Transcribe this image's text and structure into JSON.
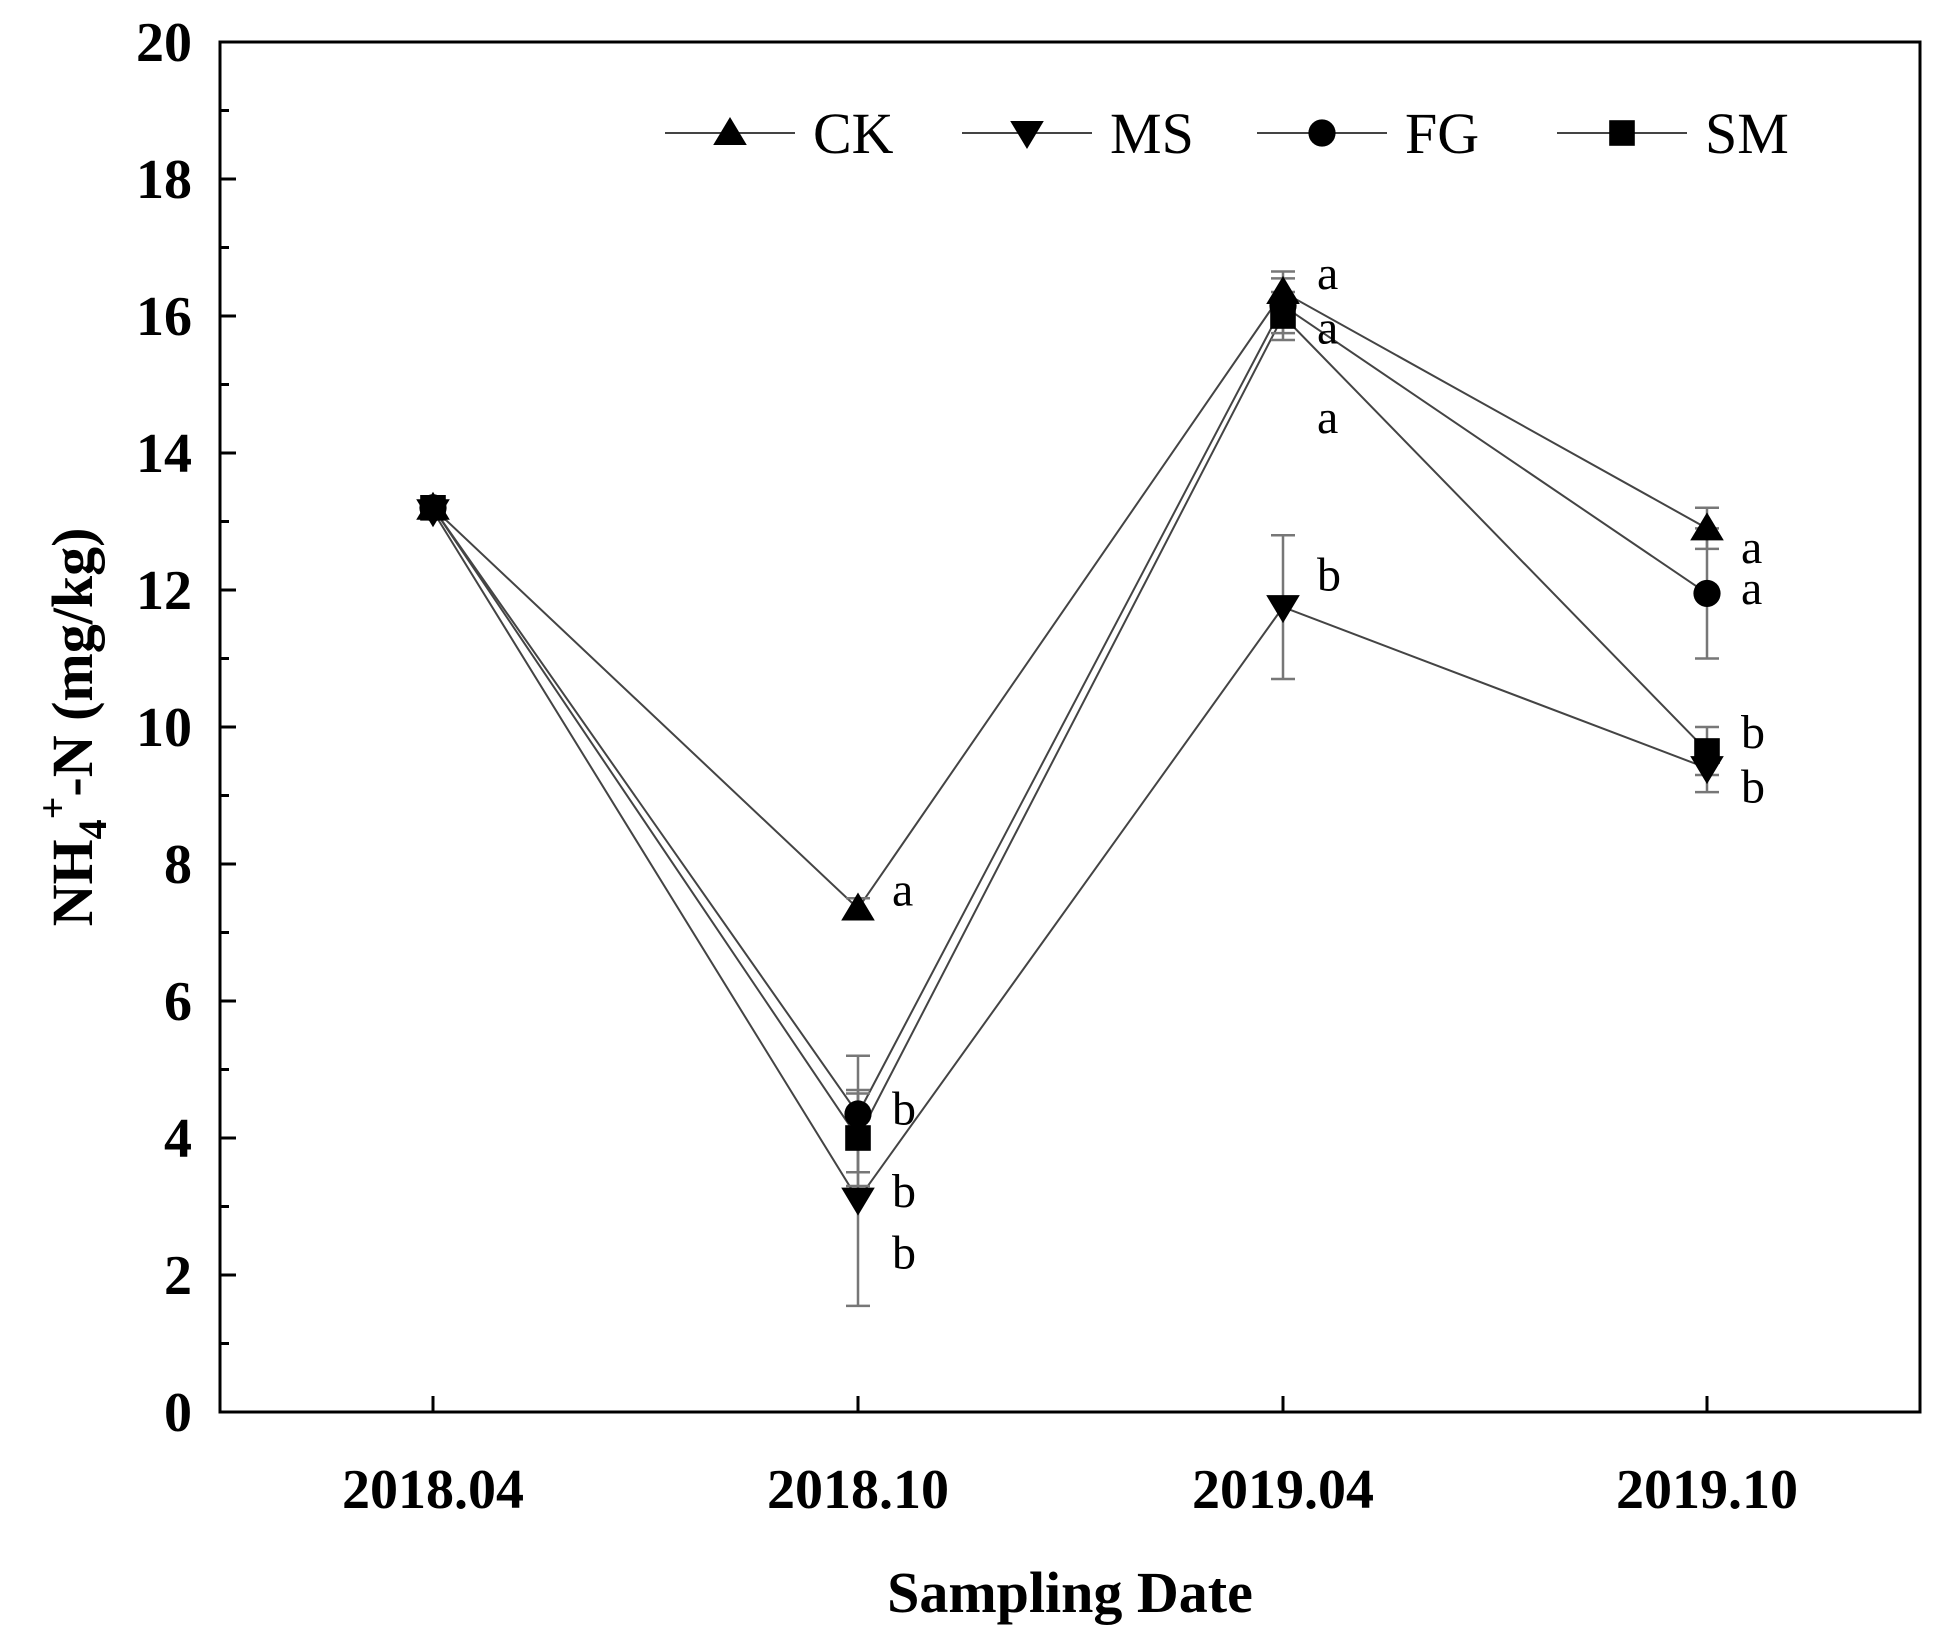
{
  "chart_data": {
    "type": "line",
    "title": "",
    "xlabel": "Sampling Date",
    "ylabel": {
      "prefix": "NH",
      "sub": "4",
      "sup": "+",
      "suffix": "-N (mg/kg)"
    },
    "categories": [
      "2018.04",
      "2018.10",
      "2019.04",
      "2019.10"
    ],
    "ylim": [
      0,
      20
    ],
    "yticks": [
      0,
      2,
      4,
      6,
      8,
      10,
      12,
      14,
      16,
      18,
      20
    ],
    "grid": false,
    "legend_position": "top-right",
    "series": [
      {
        "name": "CK",
        "marker": "triangle-up",
        "values": [
          13.2,
          7.35,
          16.35,
          12.9
        ],
        "errors": [
          0,
          0.15,
          0.3,
          0.3
        ]
      },
      {
        "name": "MS",
        "marker": "triangle-down",
        "values": [
          13.15,
          3.1,
          11.75,
          9.4
        ],
        "errors": [
          0,
          1.55,
          1.05,
          0.35
        ]
      },
      {
        "name": "FG",
        "marker": "circle",
        "values": [
          13.2,
          4.35,
          16.15,
          11.95
        ],
        "errors": [
          0,
          0.85,
          0.4,
          0.95
        ]
      },
      {
        "name": "SM",
        "marker": "square",
        "values": [
          13.2,
          4.0,
          16.0,
          9.65
        ],
        "errors": [
          0,
          0.7,
          0.35,
          0.35
        ]
      }
    ],
    "annotations": [
      {
        "category": "2018.10",
        "y": 7.6,
        "text": "a"
      },
      {
        "category": "2018.10",
        "y": 4.4,
        "text": "b"
      },
      {
        "category": "2018.10",
        "y": 3.2,
        "text": "b"
      },
      {
        "category": "2018.10",
        "y": 2.3,
        "text": "b"
      },
      {
        "category": "2019.04",
        "y": 16.6,
        "text": "a"
      },
      {
        "category": "2019.04",
        "y": 15.8,
        "text": "a"
      },
      {
        "category": "2019.04",
        "y": 14.5,
        "text": "a"
      },
      {
        "category": "2019.04",
        "y": 12.2,
        "text": "b"
      },
      {
        "category": "2019.10",
        "y": 12.6,
        "text": "a"
      },
      {
        "category": "2019.10",
        "y": 12.0,
        "text": "a"
      },
      {
        "category": "2019.10",
        "y": 9.9,
        "text": "b"
      },
      {
        "category": "2019.10",
        "y": 9.1,
        "text": "b"
      }
    ]
  }
}
